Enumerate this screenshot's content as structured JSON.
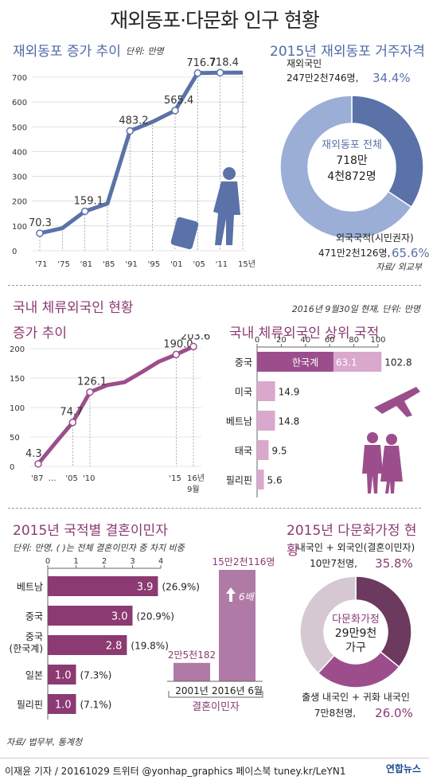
{
  "header": {
    "title": "재외동포·다문화 인구 현황"
  },
  "overseas_growth": {
    "title": "재외동포 증가 추이",
    "unit": "단위: 만명",
    "chart_data": {
      "type": "line",
      "title": "재외동포 증가 추이",
      "x": [
        "'71",
        "'75",
        "'81",
        "'85",
        "'91",
        "'95",
        "'01",
        "'05",
        "'11",
        "15년"
      ],
      "y": [
        70.3,
        91,
        159.1,
        190,
        483.2,
        520,
        565.4,
        716.7,
        718.4,
        718.4
      ],
      "labeled_points": {
        "'71": "70.3",
        "'81": "159.1",
        "'91": "483.2",
        "'01": "565.4",
        "'05": "716.7",
        "'11": "718.4"
      },
      "yticks": [
        "0",
        "100",
        "200",
        "300",
        "400",
        "500",
        "600",
        "700"
      ],
      "ylim": [
        0,
        700
      ],
      "source": "자료/ 외교부"
    }
  },
  "residency": {
    "title": "2015년 재외동포 거주자격",
    "center_label": "재외동포 전체",
    "center_value1": "718만",
    "center_value2": "4천872명",
    "chart_data": {
      "type": "pie",
      "title": "2015년 재외동포 거주자격",
      "series": [
        {
          "name": "재외국민",
          "value_text": "247만2천746명,",
          "percent_text": "34.4%",
          "percent": 34.4,
          "color": "#5a72a8"
        },
        {
          "name": "외국국적(시민권자)",
          "value_text": "471만2천126명,",
          "percent_text": "65.6%",
          "percent": 65.6,
          "color": "#9aaed6"
        }
      ]
    }
  },
  "domestic": {
    "title": "국내 체류외국인 현황",
    "date_unit": "2016년 9월30일 현재, 단위: 만명",
    "growth": {
      "title": "증가 추이",
      "chart_data": {
        "type": "line",
        "title": "증가 추이",
        "x": [
          "'87",
          "…",
          "'05",
          "'10",
          "",
          "",
          "",
          "",
          "'15",
          "16년 9월"
        ],
        "y": [
          4.3,
          40,
          74.7,
          126.1,
          138,
          143,
          160,
          178,
          190.0,
          203.6
        ],
        "labeled_points": {
          "'87": "4.3",
          "'05": "74.7",
          "'10": "126.1",
          "'15": "190.0",
          "16년 9월": "203.6"
        },
        "yticks": [
          "0",
          "50",
          "100",
          "150",
          "200"
        ],
        "ylim": [
          0,
          200
        ]
      }
    },
    "top_nations": {
      "title": "국내 체류외국인 상위 국적",
      "chart_data": {
        "type": "bar",
        "title": "국내 체류외국인 상위 국적",
        "categories": [
          "중국",
          "미국",
          "베트남",
          "태국",
          "필리핀"
        ],
        "values": [
          102.8,
          14.9,
          14.8,
          9.5,
          5.6
        ],
        "labels": [
          "102.8",
          "14.9",
          "14.8",
          "9.5",
          "5.6"
        ],
        "sub_segment": {
          "category": "중국",
          "name": "한국계",
          "value": 63.1,
          "label": "63.1"
        },
        "xticks": [
          "0",
          "20",
          "40",
          "60",
          "80",
          "100"
        ],
        "xlim": [
          0,
          100
        ]
      }
    }
  },
  "marriage": {
    "title": "2015년 국적별 결혼이민자",
    "unit": "단위: 만명, ( )는 전체 결혼이민자 중 차지 비중",
    "chart_data": {
      "type": "bar",
      "title": "2015년 국적별 결혼이민자",
      "categories": [
        "베트남",
        "중국",
        "중국\n(한국계)",
        "일본",
        "필리핀"
      ],
      "category_lines": [
        [
          "베트남"
        ],
        [
          "중국"
        ],
        [
          "중국",
          "(한국계)"
        ],
        [
          "일본"
        ],
        [
          "필리핀"
        ]
      ],
      "values": [
        3.9,
        3.0,
        2.8,
        1.0,
        1.0
      ],
      "labels": [
        "3.9",
        "3.0",
        "2.8",
        "1.0",
        "1.0"
      ],
      "shares": [
        "(26.9%)",
        "(20.9%)",
        "(19.8%)",
        "(7.3%)",
        "(7.1%)"
      ],
      "xticks": [
        "0",
        "1",
        "2",
        "3",
        "4"
      ],
      "xlim": [
        0,
        4
      ]
    },
    "compare": {
      "chart_data": {
        "type": "bar",
        "categories": [
          "2001년",
          "2016년 6월"
        ],
        "values": [
          2.5182,
          15.2116
        ],
        "labels": [
          "2만5천182",
          "15만2천116명"
        ],
        "xlabel": "결혼이민자"
      },
      "growth_label": "6배"
    }
  },
  "multicultural": {
    "title": "2015년 다문화가정 현황",
    "center_label": "다문화가정",
    "center_value1": "29만9천",
    "center_value2": "가구",
    "chart_data": {
      "type": "pie",
      "title": "2015년 다문화가정 현황",
      "series": [
        {
          "name": "내국인 + 외국인(결혼이민자)",
          "value_text": "10만7천명,",
          "percent_text": "35.8%",
          "percent": 35.8,
          "color": "#6b3a5e"
        },
        {
          "name": "출생 내국인 + 귀화 내국인",
          "value_text": "7만8천명,",
          "percent_text": "26.0%",
          "percent": 26.0,
          "color": "#9c4e8c"
        },
        {
          "name": "",
          "percent": 38.2,
          "color": "#d5c8d3"
        }
      ]
    }
  },
  "sources": {
    "bottom": "자료/ 법무부, 통계청"
  },
  "footer": {
    "credit": "이재윤 기자 / 20161029  트위터 @yonhap_graphics  페이스북 tuney.kr/LeYN1",
    "logo": "연합뉴스"
  }
}
